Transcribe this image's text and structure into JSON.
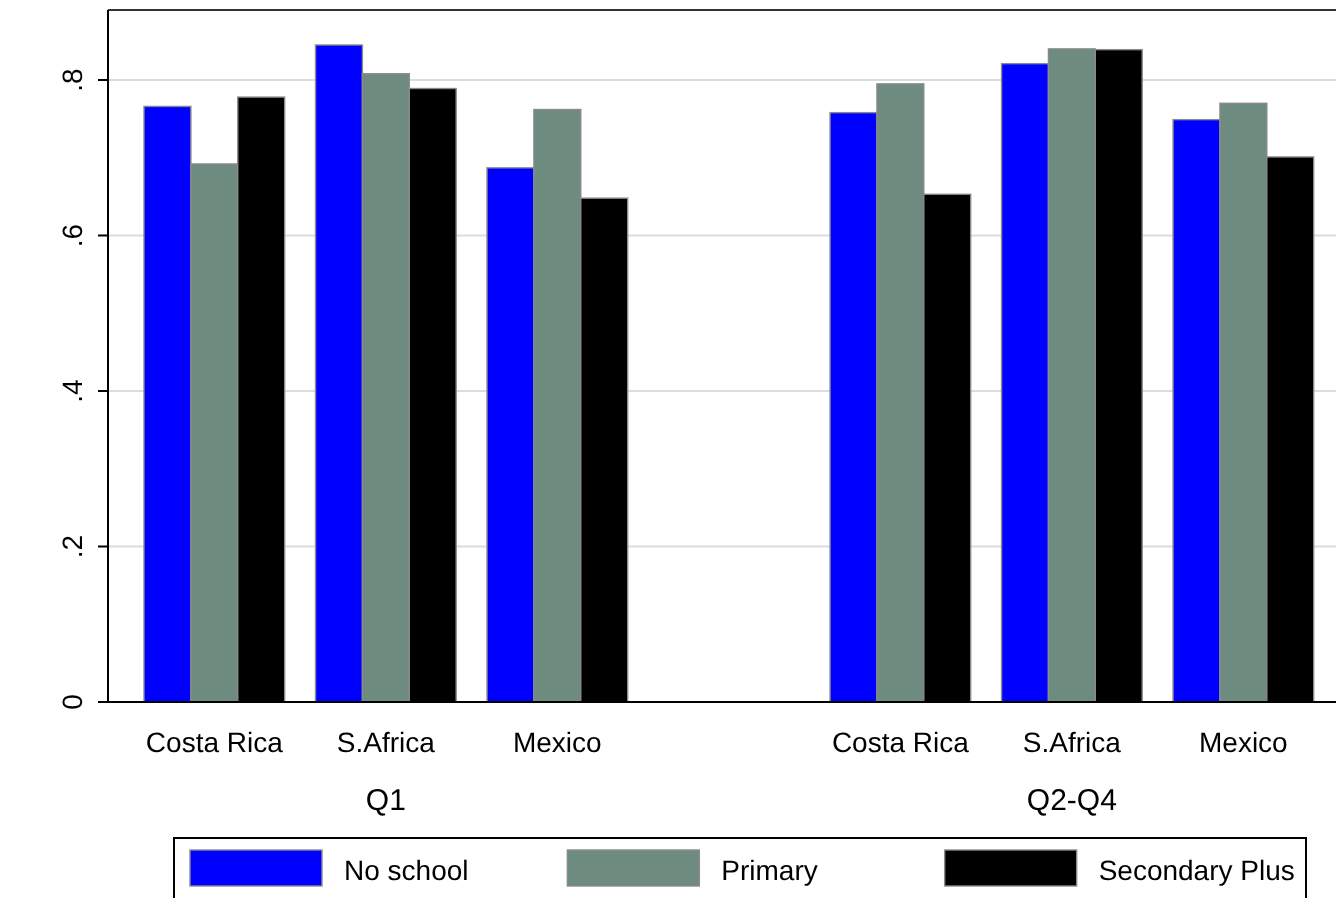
{
  "chart_data": {
    "type": "bar",
    "categories": [
      "Costa Rica",
      "S.Africa",
      "Mexico",
      null,
      "Costa Rica",
      "S.Africa",
      "Mexico"
    ],
    "series": [
      {
        "name": "No school",
        "color": "#0000ff",
        "values": [
          0.766,
          0.845,
          0.687,
          null,
          0.758,
          0.821,
          0.749
        ]
      },
      {
        "name": "Primary",
        "color": "#6e8b80",
        "values": [
          0.692,
          0.808,
          0.762,
          null,
          0.795,
          0.84,
          0.77
        ]
      },
      {
        "name": "Secondary Plus",
        "color": "#000000",
        "values": [
          0.778,
          0.789,
          0.648,
          null,
          0.653,
          0.839,
          0.701
        ]
      }
    ],
    "annotations": [
      "Q1",
      "Q2-Q4"
    ],
    "ylim": [
      0,
      0.89
    ],
    "yticks": [
      {
        "value": 0,
        "label": "0"
      },
      {
        "value": 0.2,
        "label": ".2"
      },
      {
        "value": 0.4,
        "label": ".4"
      },
      {
        "value": 0.6,
        "label": ".6"
      },
      {
        "value": 0.8,
        "label": ".8"
      }
    ],
    "grid": "y",
    "legend": "bottom"
  }
}
